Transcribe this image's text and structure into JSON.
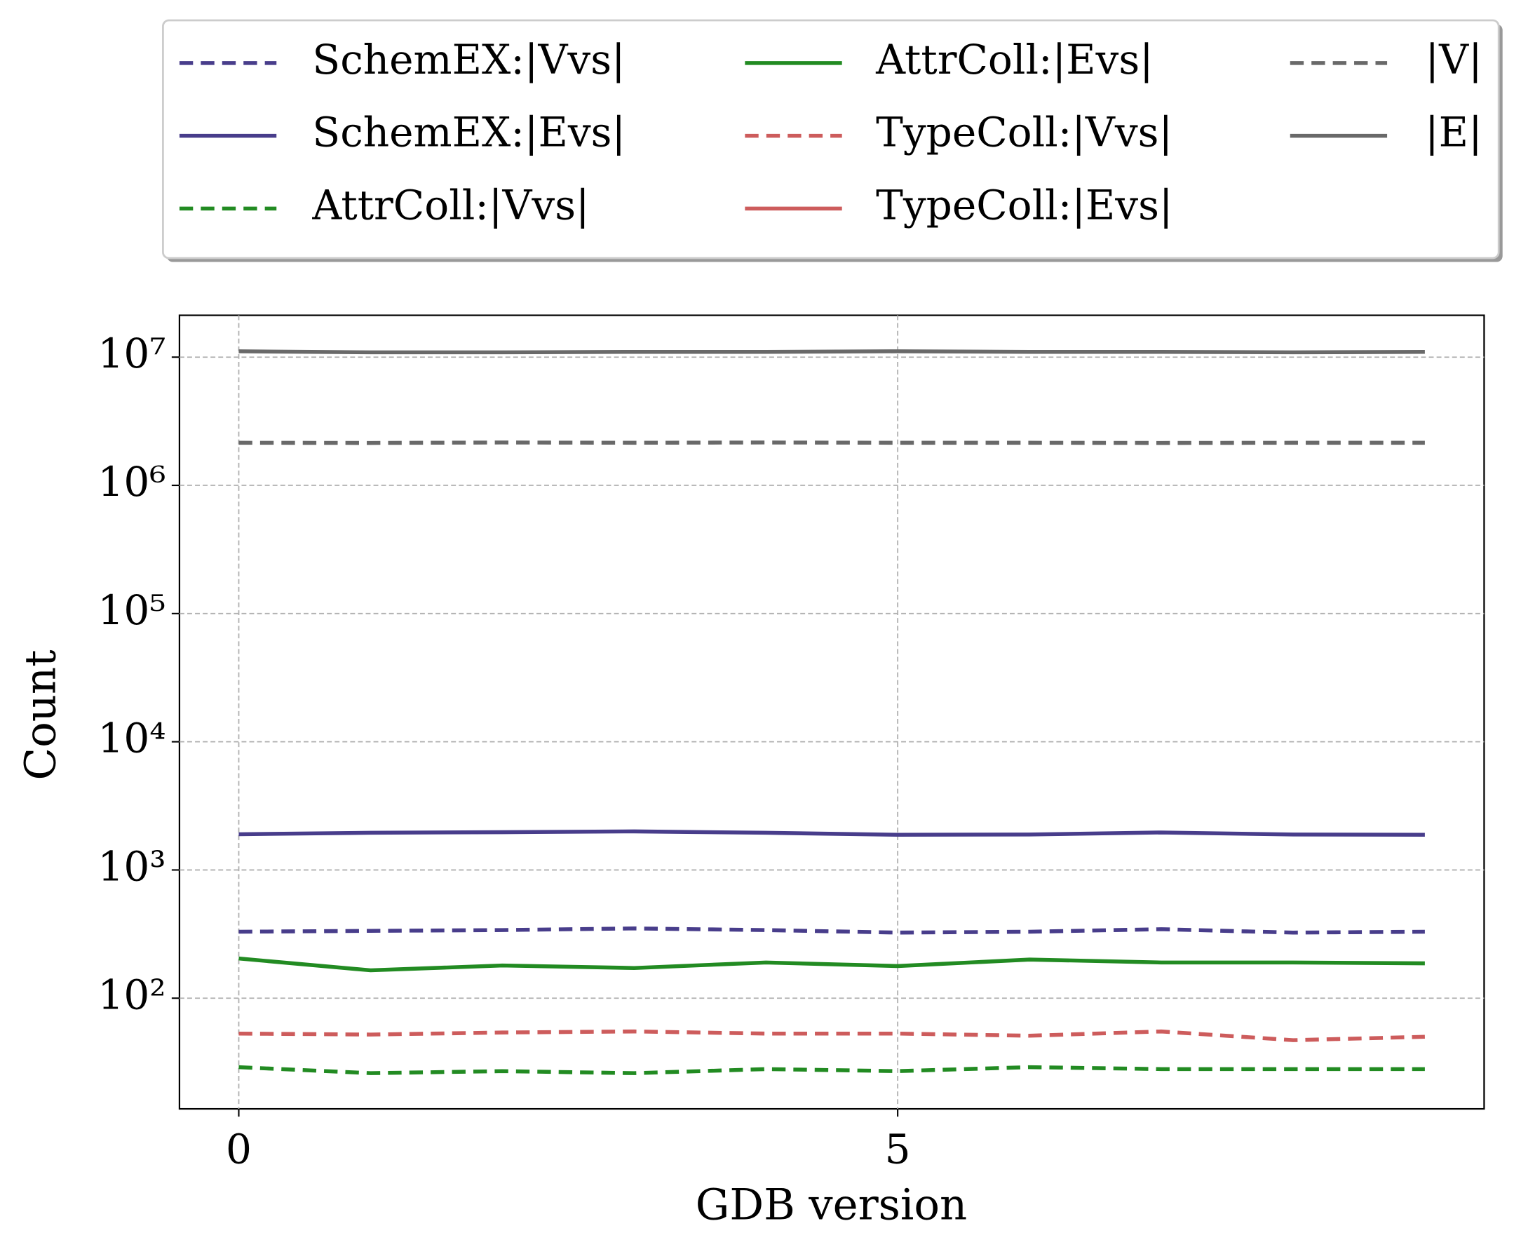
{
  "chart_data": {
    "type": "line",
    "x_label": "GDB version",
    "y_label": "Count",
    "x": [
      0,
      1,
      2,
      3,
      4,
      5,
      6,
      7,
      8,
      9
    ],
    "xlim": [
      -0.45,
      9.45
    ],
    "xticks": [
      0,
      5
    ],
    "ylim": [
      13.7,
      21200000
    ],
    "log_y": true,
    "yticks": [
      {
        "value": 100,
        "label": "10²"
      },
      {
        "value": 1000,
        "label": "10³"
      },
      {
        "value": 10000,
        "label": "10⁴"
      },
      {
        "value": 100000,
        "label": "10⁵"
      },
      {
        "value": 1000000,
        "label": "10⁶"
      },
      {
        "value": 10000000,
        "label": "10⁷"
      }
    ],
    "grid": true,
    "legend": "above",
    "series": [
      {
        "name": "SchemEX:|Vvs|",
        "color": "#483d8b",
        "dash": true,
        "values": [
          330,
          335,
          340,
          350,
          340,
          325,
          330,
          345,
          325,
          330
        ]
      },
      {
        "name": "SchemEX:|Evs|",
        "color": "#483d8b",
        "dash": false,
        "values": [
          1900,
          1950,
          1970,
          2000,
          1950,
          1880,
          1890,
          1960,
          1890,
          1880
        ]
      },
      {
        "name": "AttrColl:|Vvs|",
        "color": "#228b22",
        "dash": true,
        "values": [
          29,
          26,
          27,
          26,
          28,
          27,
          29,
          28,
          28,
          28
        ]
      },
      {
        "name": "AttrColl:|Evs|",
        "color": "#228b22",
        "dash": false,
        "values": [
          204,
          165,
          180,
          172,
          190,
          178,
          200,
          190,
          190,
          187
        ]
      },
      {
        "name": "TypeColl:|Vvs|",
        "color": "#cd5c5c",
        "dash": true,
        "values": [
          53,
          52,
          54,
          55,
          53,
          53,
          51,
          55,
          47,
          50
        ]
      },
      {
        "name": "TypeColl:|Evs|",
        "color": "#cd5c5c",
        "dash": false,
        "values": [
          null,
          null,
          null,
          null,
          null,
          null,
          null,
          null,
          null,
          null
        ]
      },
      {
        "name": "|V|",
        "color": "#696969",
        "dash": true,
        "values": [
          2150000,
          2140000,
          2160000,
          2150000,
          2160000,
          2150000,
          2150000,
          2140000,
          2150000,
          2150000
        ]
      },
      {
        "name": "|E|",
        "color": "#696969",
        "dash": false,
        "values": [
          11100000,
          10900000,
          10900000,
          11000000,
          11000000,
          11100000,
          11000000,
          11000000,
          10900000,
          11000000
        ]
      }
    ]
  }
}
